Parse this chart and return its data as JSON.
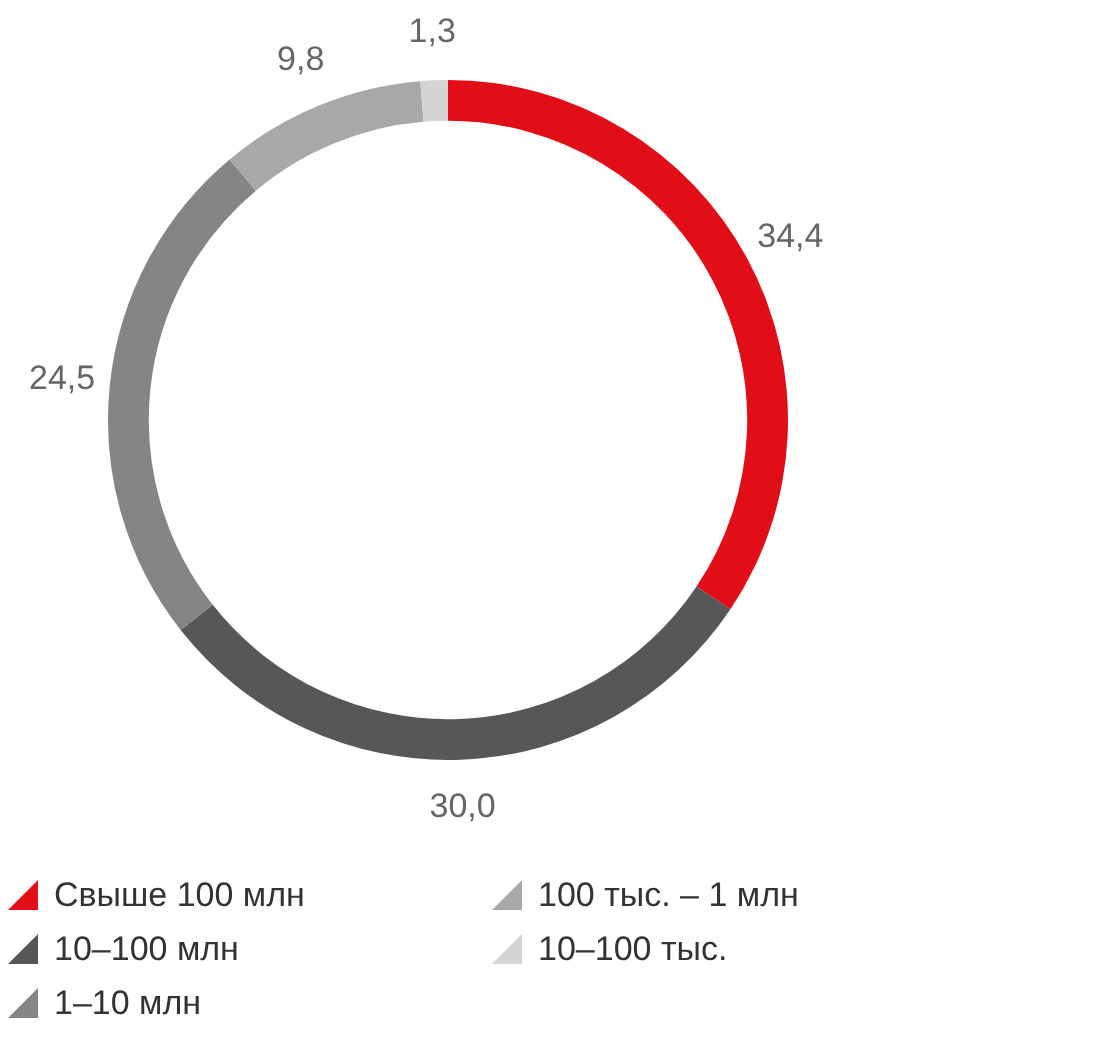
{
  "chart_data": {
    "type": "donut",
    "categories": [
      "Свыше 100 млн",
      "10–100 млн",
      "1–10 млн",
      "100 тыс. – 1 млн",
      "10–100 тыс."
    ],
    "values": [
      34.4,
      30.0,
      24.5,
      9.8,
      1.3
    ],
    "colors": [
      "#e20e17",
      "#575757",
      "#858585",
      "#a8a8a8",
      "#d4d4d4"
    ],
    "value_labels": [
      "34,4",
      "30,0",
      "24,5",
      "9,8",
      "1,3"
    ],
    "legend": "bottom left"
  }
}
